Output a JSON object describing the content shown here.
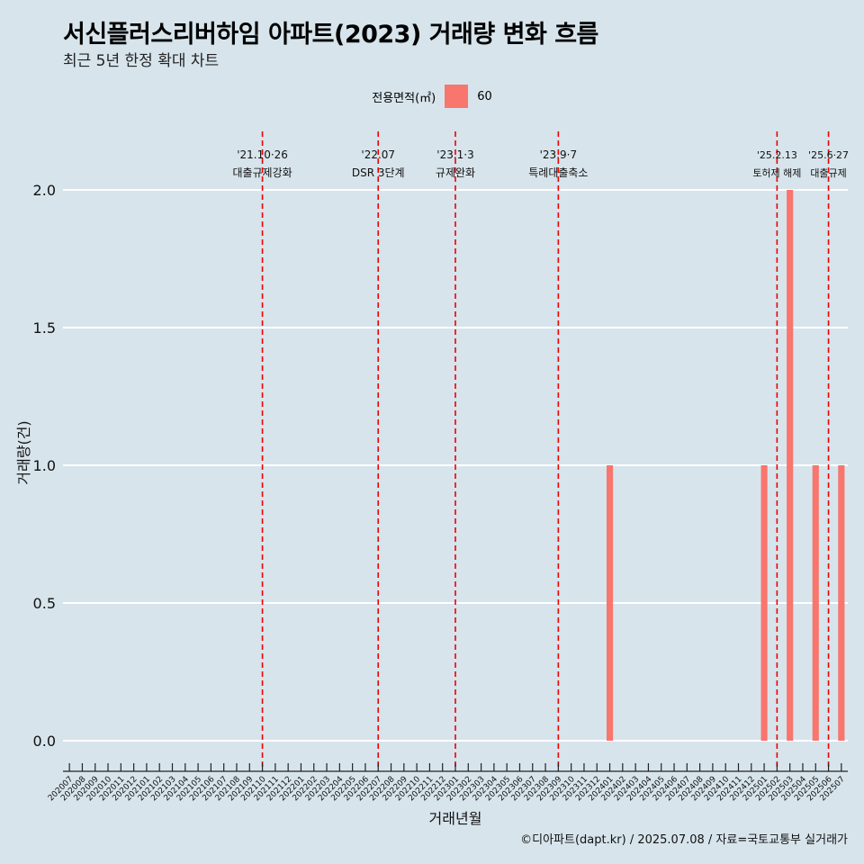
{
  "header": {
    "title": "서신플러스리버하임 아파트(2023) 거래량 변화 흐름",
    "subtitle": "최근 5년 한정 확대 차트"
  },
  "legend": {
    "title": "전용면적(㎡)",
    "items": [
      {
        "label": "60",
        "color": "#f8766d"
      }
    ]
  },
  "caption": "©디아파트(dapt.kr) / 2025.07.08 / 자료=국토교통부 실거래가",
  "colors": {
    "background": "#d7e4ec",
    "bar": "#f8766d",
    "event_line": "#ee0000",
    "grid": "#ffffff"
  },
  "chart_data": {
    "type": "bar",
    "xlabel": "거래년월",
    "ylabel": "거래량(건)",
    "ylim": [
      0,
      2.0
    ],
    "yticks": [
      "0.0",
      "0.5",
      "1.0",
      "1.5",
      "2.0"
    ],
    "grid": true,
    "legend_position": "top",
    "categories": [
      "202007",
      "202008",
      "202009",
      "202010",
      "202011",
      "202012",
      "202101",
      "202102",
      "202103",
      "202104",
      "202105",
      "202106",
      "202107",
      "202108",
      "202109",
      "202110",
      "202111",
      "202112",
      "202201",
      "202202",
      "202203",
      "202204",
      "202205",
      "202206",
      "202207",
      "202208",
      "202209",
      "202210",
      "202211",
      "202212",
      "202301",
      "202302",
      "202303",
      "202304",
      "202305",
      "202306",
      "202307",
      "202308",
      "202309",
      "202310",
      "202311",
      "202312",
      "202401",
      "202402",
      "202403",
      "202404",
      "202405",
      "202406",
      "202407",
      "202408",
      "202409",
      "202410",
      "202411",
      "202412",
      "202501",
      "202502",
      "202503",
      "202504",
      "202505",
      "202506",
      "202507"
    ],
    "series": [
      {
        "name": "60",
        "values": [
          0,
          0,
          0,
          0,
          0,
          0,
          0,
          0,
          0,
          0,
          0,
          0,
          0,
          0,
          0,
          0,
          0,
          0,
          0,
          0,
          0,
          0,
          0,
          0,
          0,
          0,
          0,
          0,
          0,
          0,
          0,
          0,
          0,
          0,
          0,
          0,
          0,
          0,
          0,
          0,
          0,
          0,
          1,
          0,
          0,
          0,
          0,
          0,
          0,
          0,
          0,
          0,
          0,
          0,
          1,
          0,
          2,
          0,
          1,
          0,
          1
        ]
      }
    ],
    "annotations": [
      {
        "date": "'21.10·26",
        "text": "대출규제강화",
        "x": "202110"
      },
      {
        "date": "'22.07",
        "text": "DSR 3단계",
        "x": "202207"
      },
      {
        "date": "'23.1·3",
        "text": "규제완화",
        "x": "202301"
      },
      {
        "date": "'23.9·7",
        "text": "특례대출축소",
        "x": "202309"
      },
      {
        "date": "'25.2.13",
        "text": "토허제 해제",
        "x": "202502"
      },
      {
        "date": "'25.6·27",
        "text": "대출규제",
        "x": "202506"
      }
    ]
  }
}
